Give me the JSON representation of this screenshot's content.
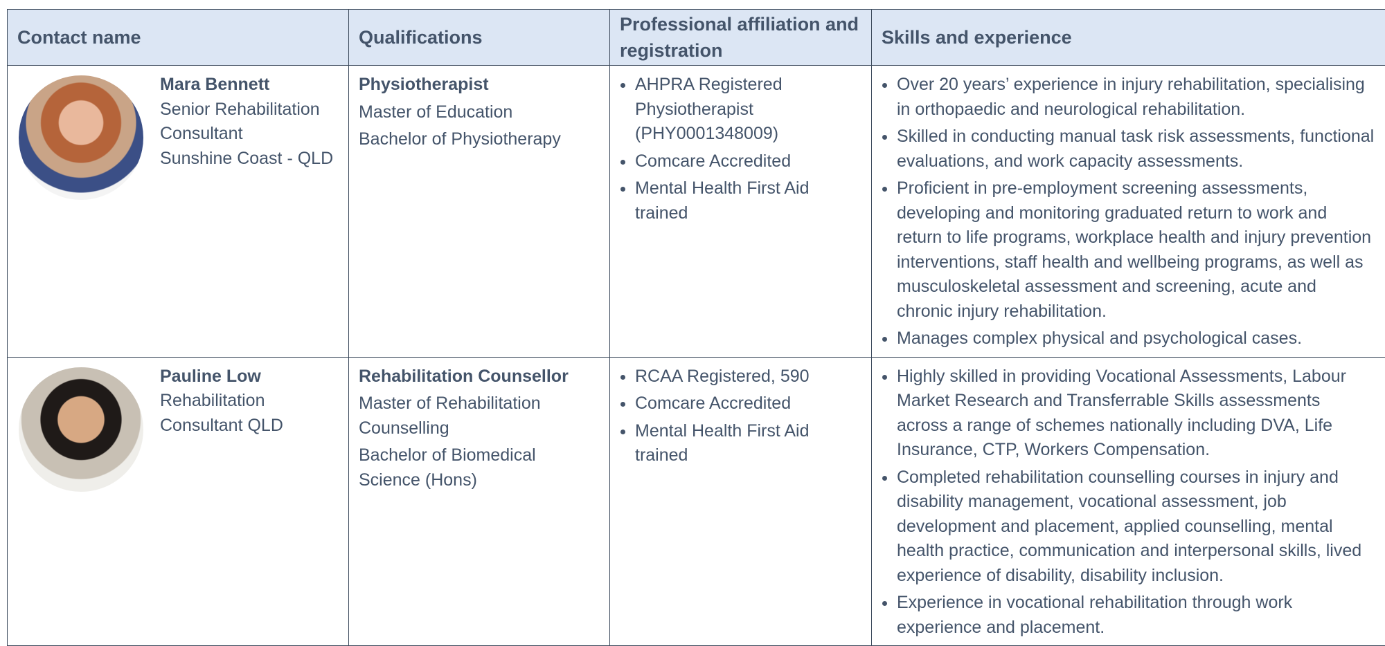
{
  "header": {
    "columns": [
      "Contact name",
      "Qualifications",
      "Professional affiliation and registration",
      "Skills and experience"
    ]
  },
  "rows": [
    {
      "name": "Mara Bennett",
      "role": "Senior Rehabilitation Consultant",
      "location": "Sunshine Coast - QLD",
      "qualifications": {
        "title": "Physiotherapist",
        "items": [
          "Master of Education",
          "Bachelor of Physiotherapy"
        ]
      },
      "affiliations": [
        "AHPRA Registered Physiotherapist (PHY0001348009)",
        "Comcare Accredited",
        "Mental Health First Aid trained"
      ],
      "skills": [
        "Over 20 years’ experience in injury rehabilitation, specialising in orthopaedic and neurological rehabilitation.",
        "Skilled in conducting manual task risk assessments, functional evaluations, and work capacity assessments.",
        "Proficient in pre-employment screening assessments, developing and monitoring graduated return to work and return to life programs, workplace health and injury prevention interventions, staff health and wellbeing programs, as well as musculoskeletal assessment and screening, acute and chronic injury rehabilitation.",
        "Manages complex physical and psychological cases."
      ]
    },
    {
      "name": "Pauline Low",
      "role": "Rehabilitation Consultant QLD",
      "qualifications": {
        "title": "Rehabilitation Counsellor",
        "items": [
          "Master of Rehabilitation Counselling",
          "Bachelor of Biomedical Science (Hons)"
        ]
      },
      "affiliations": [
        "RCAA Registered, 590",
        "Comcare Accredited",
        "Mental Health First Aid trained"
      ],
      "skills": [
        "Highly skilled in providing Vocational Assessments, Labour Market Research and Transferrable Skills assessments across a range of schemes nationally including DVA, Life Insurance, CTP, Workers Compensation.",
        "Completed rehabilitation counselling courses in injury and disability management, vocational assessment, job development and placement, applied counselling, mental health practice, communication and interpersonal skills, lived experience of disability, disability inclusion.",
        "Experience in vocational rehabilitation through work experience and placement."
      ]
    }
  ]
}
